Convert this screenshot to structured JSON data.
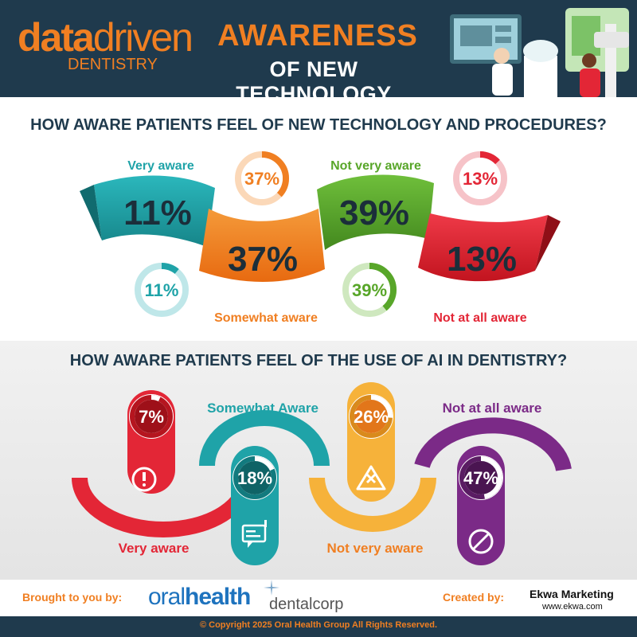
{
  "header": {
    "logo_data": "data",
    "logo_driven": "driven",
    "logo_sub": "DENTISTRY",
    "title_line1": "AWARENESS",
    "title_line2": "OF NEW TECHNOLOGY"
  },
  "colors": {
    "navy": "#1f3a4d",
    "orange": "#f07f22",
    "teal": "#1fa3a8",
    "green": "#58a629",
    "red": "#e32636",
    "purple": "#7b2a87"
  },
  "chart_data": [
    {
      "type": "pie",
      "title": "HOW AWARE PATIENTS FEEL OF NEW TECHNOLOGY AND PROCEDURES?",
      "categories": [
        "Very aware",
        "Somewhat aware",
        "Not very aware",
        "Not at all aware"
      ],
      "values": [
        11,
        37,
        39,
        13
      ],
      "labels": [
        "11%",
        "37%",
        "39%",
        "13%"
      ],
      "unit": "%"
    },
    {
      "type": "pie",
      "title": "HOW AWARE PATIENTS FEEL OF THE USE OF AI IN DENTISTRY?",
      "categories": [
        "Very aware",
        "Somewhat Aware",
        "Not very aware",
        "Not at all aware"
      ],
      "values": [
        7,
        18,
        26,
        47
      ],
      "labels": [
        "7%",
        "18%",
        "26%",
        "47%"
      ],
      "unit": "%"
    }
  ],
  "footer": {
    "brought_by": "Brought to you by:",
    "oral": "oral",
    "health": "health",
    "dentalcorp": "dentalcorp",
    "created_by": "Created by:",
    "ekwa": "Ekwa Marketing",
    "ekwa_url": "www.ekwa.com",
    "copyright": "© Copyright 2025 Oral Health Group All Rights Reserved."
  }
}
